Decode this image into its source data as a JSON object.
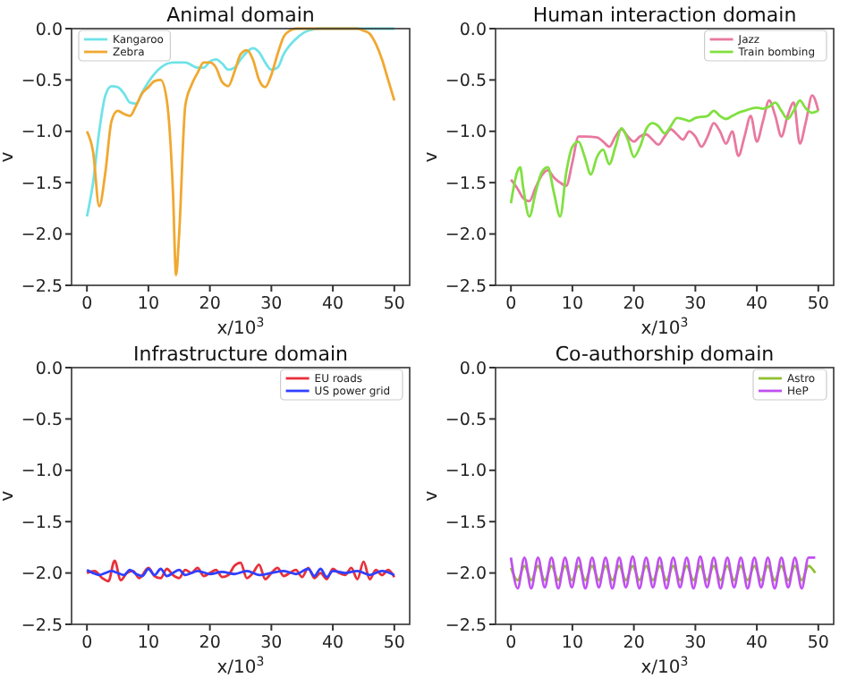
{
  "chart_data": [
    {
      "type": "line",
      "title": "Animal domain",
      "xlabel": "x/10$^{3}$",
      "ylabel": "v",
      "xlim": [
        -2.5,
        52.5
      ],
      "ylim": [
        -2.5,
        0
      ],
      "xticks": [
        0,
        10,
        20,
        30,
        40,
        50
      ],
      "yticks": [
        {
          "value": -2.5,
          "label": "−2.5"
        },
        {
          "value": -2,
          "label": "−2.0"
        },
        {
          "value": -1.5,
          "label": "−1.5"
        },
        {
          "value": -1,
          "label": "−1.0"
        },
        {
          "value": -0.5,
          "label": "−0.5"
        },
        {
          "value": 0,
          "label": "0.0"
        }
      ],
      "legend": "top left",
      "grid": false,
      "series": [
        {
          "name": "Kangaroo",
          "color": "#6fe3e8",
          "x": [
            0,
            1,
            2,
            3,
            4,
            5,
            6,
            7,
            8,
            9,
            10,
            12,
            14,
            16,
            18,
            19,
            20,
            21,
            22,
            23,
            24,
            25,
            26,
            27,
            28,
            29,
            30,
            31,
            32,
            34,
            36,
            38,
            42,
            46,
            50
          ],
          "values": [
            -1.83,
            -1.5,
            -1.0,
            -0.65,
            -0.56,
            -0.57,
            -0.63,
            -0.72,
            -0.73,
            -0.62,
            -0.52,
            -0.38,
            -0.33,
            -0.33,
            -0.38,
            -0.38,
            -0.32,
            -0.3,
            -0.34,
            -0.4,
            -0.38,
            -0.3,
            -0.23,
            -0.19,
            -0.23,
            -0.33,
            -0.4,
            -0.38,
            -0.25,
            -0.1,
            -0.02,
            0,
            0,
            0,
            0
          ]
        },
        {
          "name": "Zebra",
          "color": "#f0a830",
          "x": [
            0,
            1,
            2,
            3,
            4,
            5,
            6,
            7,
            8,
            9,
            10,
            11,
            12,
            13,
            14,
            14.5,
            15,
            16,
            17,
            18,
            19,
            20,
            21,
            22,
            23,
            24,
            25,
            26,
            27,
            28,
            29,
            30,
            31,
            32,
            33,
            34,
            44,
            45,
            46,
            47,
            48,
            49,
            50
          ],
          "values": [
            -1.0,
            -1.2,
            -1.73,
            -1.4,
            -0.9,
            -0.8,
            -0.83,
            -0.85,
            -0.75,
            -0.63,
            -0.57,
            -0.51,
            -0.5,
            -0.7,
            -1.6,
            -2.4,
            -2.0,
            -0.75,
            -0.55,
            -0.43,
            -0.33,
            -0.33,
            -0.38,
            -0.52,
            -0.56,
            -0.42,
            -0.25,
            -0.21,
            -0.3,
            -0.5,
            -0.57,
            -0.45,
            -0.25,
            -0.08,
            -0.02,
            0,
            0,
            -0.02,
            -0.05,
            -0.15,
            -0.3,
            -0.5,
            -0.7
          ]
        }
      ]
    },
    {
      "type": "line",
      "title": "Human interaction domain",
      "xlabel": "x/10$^{3}$",
      "ylabel": "v",
      "xlim": [
        -2.5,
        52.5
      ],
      "ylim": [
        -2.5,
        0
      ],
      "xticks": [
        0,
        10,
        20,
        30,
        40,
        50
      ],
      "yticks": [
        {
          "value": -2.5,
          "label": "−2.5"
        },
        {
          "value": -2,
          "label": "−2.0"
        },
        {
          "value": -1.5,
          "label": "−1.5"
        },
        {
          "value": -1,
          "label": "−1.0"
        },
        {
          "value": -0.5,
          "label": "−0.5"
        },
        {
          "value": 0,
          "label": "0.0"
        }
      ],
      "legend": "top right",
      "grid": false,
      "series": [
        {
          "name": "Jazz",
          "color": "#e879a0",
          "x": [
            0,
            1,
            2,
            3,
            4,
            5,
            6,
            7,
            8,
            9,
            10,
            11,
            12,
            14,
            15,
            16,
            17,
            18,
            19,
            20,
            21,
            22,
            23,
            24,
            25,
            26,
            27,
            28,
            29,
            30,
            31,
            32,
            33,
            34,
            35,
            36,
            37,
            38,
            39,
            40,
            41,
            42,
            43,
            44,
            45,
            46,
            47,
            48,
            49,
            50
          ],
          "values": [
            -1.47,
            -1.55,
            -1.65,
            -1.68,
            -1.55,
            -1.43,
            -1.38,
            -1.45,
            -1.5,
            -1.53,
            -1.3,
            -1.05,
            -1.05,
            -1.06,
            -1.1,
            -1.15,
            -1.05,
            -0.98,
            -1.05,
            -1.1,
            -1.05,
            -1.03,
            -1.08,
            -1.13,
            -1.05,
            -0.98,
            -1.03,
            -1.08,
            -1.0,
            -1.05,
            -1.15,
            -1.05,
            -0.92,
            -1.0,
            -1.12,
            -1.0,
            -1.24,
            -1.05,
            -0.85,
            -1.1,
            -0.9,
            -0.7,
            -0.85,
            -1.05,
            -0.85,
            -0.72,
            -1.12,
            -0.9,
            -0.65,
            -0.8
          ]
        },
        {
          "name": "Train bombing",
          "color": "#80e040",
          "x": [
            0,
            1,
            1.5,
            2,
            3,
            4,
            5,
            6,
            7,
            8,
            9,
            10,
            11,
            12,
            13,
            14,
            15,
            16,
            17,
            18,
            19,
            20,
            21,
            22,
            23,
            24,
            25,
            26,
            27,
            28,
            29,
            30,
            32,
            33,
            34,
            35,
            36,
            37,
            38,
            40,
            41,
            42,
            43,
            44,
            45,
            46,
            47,
            48,
            49,
            50
          ],
          "values": [
            -1.7,
            -1.4,
            -1.35,
            -1.55,
            -1.83,
            -1.6,
            -1.4,
            -1.35,
            -1.6,
            -1.83,
            -1.4,
            -1.15,
            -1.1,
            -1.25,
            -1.42,
            -1.25,
            -1.18,
            -1.32,
            -1.15,
            -0.97,
            -1.08,
            -1.25,
            -1.15,
            -0.98,
            -0.92,
            -0.95,
            -1.02,
            -0.95,
            -0.87,
            -0.88,
            -0.9,
            -0.87,
            -0.85,
            -0.8,
            -0.85,
            -0.88,
            -0.85,
            -0.82,
            -0.8,
            -0.77,
            -0.78,
            -0.76,
            -0.72,
            -0.8,
            -0.88,
            -0.8,
            -0.7,
            -0.78,
            -0.82,
            -0.8
          ]
        }
      ]
    },
    {
      "type": "line",
      "title": "Infrastructure domain",
      "xlabel": "x/10$^{3}$",
      "ylabel": "v",
      "xlim": [
        -2.5,
        52.5
      ],
      "ylim": [
        -2.5,
        0
      ],
      "xticks": [
        0,
        10,
        20,
        30,
        40,
        50
      ],
      "yticks": [
        {
          "value": -2.5,
          "label": "−2.5"
        },
        {
          "value": -2,
          "label": "−2.0"
        },
        {
          "value": -1.5,
          "label": "−1.5"
        },
        {
          "value": -1,
          "label": "−1.0"
        },
        {
          "value": -0.5,
          "label": "−0.5"
        },
        {
          "value": 0,
          "label": "0.0"
        }
      ],
      "legend": "top right",
      "grid": false,
      "series": [
        {
          "name": "EU roads",
          "color": "#e8303a",
          "x": [
            0,
            1.25,
            2.5,
            3.5,
            4.5,
            5.5,
            6.5,
            7.5,
            8.5,
            10,
            11,
            12,
            13,
            14,
            15,
            16,
            17,
            18,
            19,
            20,
            21,
            22,
            23,
            24,
            25,
            26,
            27,
            28,
            29,
            30,
            31,
            32,
            33,
            34,
            35,
            36,
            37,
            38,
            39,
            40,
            41,
            42,
            43,
            44,
            45,
            46,
            47,
            48,
            49,
            50
          ],
          "values": [
            -2.0,
            -1.98,
            -2.05,
            -2.08,
            -1.88,
            -2.07,
            -2.0,
            -1.98,
            -2.05,
            -1.95,
            -2.03,
            -2.05,
            -1.96,
            -2.02,
            -2.05,
            -1.97,
            -2.0,
            -1.95,
            -2.03,
            -2.0,
            -1.97,
            -2.04,
            -2.02,
            -1.93,
            -1.9,
            -2.05,
            -2.0,
            -1.92,
            -2.06,
            -2.0,
            -1.95,
            -2.03,
            -2.0,
            -1.97,
            -2.04,
            -1.95,
            -2.05,
            -2.0,
            -2.06,
            -1.96,
            -2.0,
            -2.02,
            -1.95,
            -2.06,
            -1.89,
            -2.06,
            -1.97,
            -2.02,
            -1.97,
            -2.04
          ]
        },
        {
          "name": "US power grid",
          "color": "#3040ff",
          "x": [
            0,
            1,
            2,
            3,
            4,
            5,
            6,
            7,
            8,
            9,
            10,
            11,
            12,
            13,
            14,
            15,
            16,
            17,
            18,
            20,
            22,
            24,
            26,
            28,
            30,
            32,
            34,
            36,
            37,
            38,
            39,
            40,
            42,
            44,
            46,
            48,
            50
          ],
          "values": [
            -1.97,
            -2.0,
            -2.02,
            -2.0,
            -1.98,
            -2.0,
            -2.02,
            -1.97,
            -2.01,
            -2.03,
            -1.96,
            -2.02,
            -1.96,
            -2.03,
            -2.0,
            -1.97,
            -2.02,
            -2.0,
            -1.98,
            -2.01,
            -1.99,
            -2.01,
            -1.98,
            -2.02,
            -2.0,
            -1.98,
            -2.01,
            -1.96,
            -2.03,
            -1.96,
            -2.04,
            -1.98,
            -2.0,
            -1.98,
            -2.02,
            -1.98,
            -2.02
          ]
        }
      ]
    },
    {
      "type": "line",
      "title": "Co-authorship domain",
      "xlabel": "x/10$^{3}$",
      "ylabel": "v",
      "xlim": [
        -2.5,
        52.5
      ],
      "ylim": [
        -2.5,
        0
      ],
      "xticks": [
        0,
        10,
        20,
        30,
        40,
        50
      ],
      "yticks": [
        {
          "value": -2.5,
          "label": "−2.5"
        },
        {
          "value": -2,
          "label": "−2.0"
        },
        {
          "value": -1.5,
          "label": "−1.5"
        },
        {
          "value": -1,
          "label": "−1.0"
        },
        {
          "value": -0.5,
          "label": "−0.5"
        },
        {
          "value": 0,
          "label": "0.0"
        }
      ],
      "legend": "top right",
      "grid": false,
      "x": [
        0,
        1.1,
        2.2,
        3.3,
        4.4,
        5.5,
        6.6,
        7.7,
        8.8,
        9.9,
        11,
        12.1,
        13.2,
        14.3,
        15.4,
        16.5,
        17.6,
        18.7,
        19.8,
        20.9,
        22,
        23.1,
        24.2,
        25.3,
        26.4,
        27.5,
        28.6,
        29.7,
        30.8,
        31.9,
        33,
        34.1,
        35.2,
        36.3,
        37.4,
        38.5,
        39.6,
        40.7,
        41.8,
        42.9,
        44,
        45.1,
        46.2,
        47.3,
        48.4,
        49.5
      ],
      "series": [
        {
          "name": "Astro",
          "color": "#90c030",
          "values": [
            -1.95,
            -2.07,
            -1.93,
            -2.07,
            -1.93,
            -2.07,
            -1.93,
            -2.07,
            -1.93,
            -2.07,
            -1.93,
            -2.07,
            -1.93,
            -2.07,
            -1.93,
            -2.07,
            -1.93,
            -2.07,
            -1.93,
            -2.07,
            -1.93,
            -2.07,
            -1.93,
            -2.07,
            -1.93,
            -2.07,
            -1.93,
            -2.07,
            -1.93,
            -2.07,
            -1.93,
            -2.07,
            -1.93,
            -2.07,
            -1.93,
            -2.07,
            -1.93,
            -2.07,
            -1.93,
            -2.07,
            -1.93,
            -2.07,
            -1.93,
            -2.07,
            -1.93,
            -2.0
          ]
        },
        {
          "name": "HeP",
          "color": "#c050f0",
          "values": [
            -1.85,
            -2.15,
            -1.85,
            -2.15,
            -1.85,
            -2.14,
            -1.85,
            -2.15,
            -1.85,
            -2.14,
            -1.85,
            -2.15,
            -1.85,
            -2.14,
            -1.85,
            -2.15,
            -1.85,
            -2.14,
            -1.84,
            -2.15,
            -1.85,
            -2.14,
            -1.85,
            -2.15,
            -1.85,
            -2.14,
            -1.85,
            -2.15,
            -1.84,
            -2.14,
            -1.85,
            -2.15,
            -1.85,
            -2.14,
            -1.85,
            -2.15,
            -1.85,
            -2.14,
            -1.85,
            -2.15,
            -1.85,
            -2.14,
            -1.85,
            -2.15,
            -1.85,
            -1.85
          ]
        }
      ]
    }
  ]
}
